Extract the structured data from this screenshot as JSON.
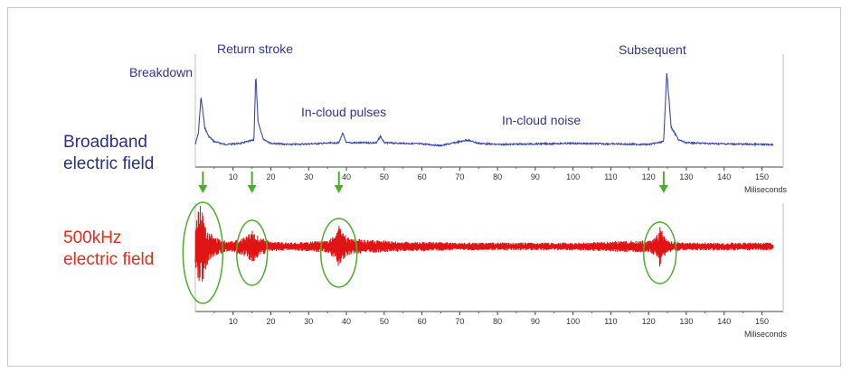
{
  "labels": {
    "broadband": [
      "Broadband",
      "electric field"
    ],
    "lf": [
      "500kHz",
      "electric field"
    ]
  },
  "annotations": {
    "breakdown": "Breakdown",
    "return_stroke": "Return stroke",
    "in_cloud_pulses": "In-cloud pulses",
    "in_cloud_noise": "In-cloud noise",
    "subsequent": "Subsequent"
  },
  "colors": {
    "broadband": "#3a4aa8",
    "lf": "#e01414",
    "label_blue": "#2b2f86",
    "label_red": "#e8291c",
    "marker": "#4cae2e",
    "axis": "#444444"
  },
  "chart_data": [
    {
      "type": "line",
      "series": [
        {
          "name": "Broadband electric field",
          "x": [
            0,
            0.8,
            1.5,
            2.5,
            3.5,
            5,
            8,
            12,
            15.5,
            16,
            16.6,
            18,
            20,
            25,
            30,
            38,
            39,
            40,
            48,
            49,
            50,
            55,
            60,
            65,
            70,
            72,
            75,
            80,
            90,
            100,
            110,
            120,
            124,
            124.8,
            126,
            128,
            130,
            140,
            150,
            153
          ],
          "y": [
            0,
            2,
            8.5,
            3,
            1.5,
            0.5,
            0,
            0.2,
            0.8,
            12.5,
            4,
            1.0,
            0.2,
            0,
            0.1,
            0.3,
            2.0,
            0.3,
            0.3,
            1.5,
            0.3,
            0.2,
            0.1,
            -0.2,
            0.5,
            0.8,
            0.2,
            0,
            0.1,
            0.2,
            0.1,
            0,
            0.5,
            13,
            3,
            0.8,
            0.3,
            0.1,
            0,
            0
          ]
        }
      ],
      "xlabel": "Miliseconds",
      "xticks": [
        10,
        20,
        30,
        40,
        50,
        60,
        70,
        80,
        90,
        100,
        110,
        120,
        130,
        140,
        150
      ],
      "xlim": [
        0,
        153
      ]
    },
    {
      "type": "line",
      "series": [
        {
          "name": "500kHz electric field",
          "x": [
            0,
            1,
            2,
            3,
            5,
            8,
            12,
            14,
            15,
            16,
            18,
            20,
            25,
            30,
            35,
            37,
            38,
            39,
            40,
            42,
            45,
            50,
            55,
            60,
            70,
            80,
            90,
            100,
            110,
            115,
            120,
            122,
            123,
            124,
            125,
            130,
            140,
            150,
            153
          ],
          "amplitude": [
            10,
            22,
            18,
            10,
            5,
            3,
            4,
            6,
            9,
            6,
            4,
            2.5,
            2,
            2.5,
            3,
            7,
            11,
            8,
            5,
            4,
            3.5,
            3,
            2.5,
            2.5,
            2,
            2,
            2,
            2,
            2.5,
            3,
            3,
            5,
            11,
            6,
            3,
            2,
            2,
            2,
            2
          ]
        }
      ],
      "xlabel": "Miliseconds",
      "xticks": [
        10,
        20,
        30,
        40,
        50,
        60,
        70,
        80,
        90,
        100,
        110,
        120,
        130,
        140,
        150
      ],
      "xlim": [
        0,
        153
      ]
    }
  ],
  "markers": {
    "arrows_ms": [
      2,
      15,
      38,
      124
    ],
    "ellipses_ms": [
      2,
      15,
      38,
      123
    ]
  }
}
